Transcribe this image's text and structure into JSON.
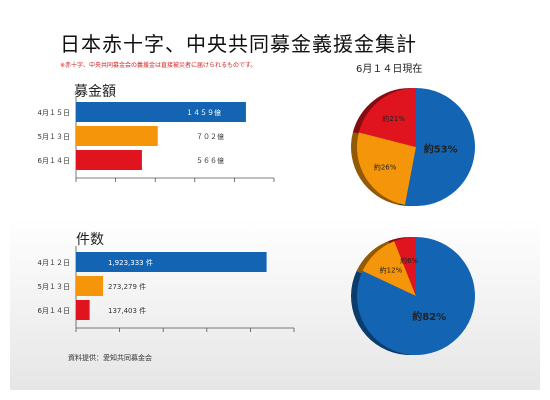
{
  "title": "日本赤十字、中央共同募金義援金集計",
  "note": "※赤十字、中央共同募金会の義援金は直接被災者に届けられるものです。",
  "as_of": "6月１４日現在",
  "source": "資料提供：愛知共同募金会",
  "colors": {
    "blue": "#1464b4",
    "orange": "#f5960a",
    "red": "#e0141e"
  },
  "chart_data": [
    {
      "type": "bar",
      "orientation": "horizontal",
      "title": "募金額",
      "categories": [
        "4月１５日",
        "5月１３日",
        "6月１４日"
      ],
      "values": [
        1459,
        702,
        566
      ],
      "data_labels": [
        "１４５９億",
        "７０２億",
        "５６６億"
      ],
      "colors": [
        "#1464b4",
        "#f5960a",
        "#e0141e"
      ],
      "xlim": [
        0,
        1700
      ],
      "grid": false
    },
    {
      "type": "pie",
      "slices": [
        {
          "value": 53,
          "label": "約53%",
          "color": "#1464b4"
        },
        {
          "value": 26,
          "label": "約26%",
          "color": "#f5960a"
        },
        {
          "value": 21,
          "label": "約21%",
          "color": "#e0141e"
        }
      ]
    },
    {
      "type": "bar",
      "orientation": "horizontal",
      "title": "件数",
      "categories": [
        "4月１２日",
        "5月１３日",
        "6月１４日"
      ],
      "values": [
        1923333,
        273279,
        137403
      ],
      "data_labels": [
        "1,923,333 件",
        "273,279 件",
        "137,403 件"
      ],
      "colors": [
        "#1464b4",
        "#f5960a",
        "#e0141e"
      ],
      "xlim": [
        0,
        2200000
      ],
      "grid": false
    },
    {
      "type": "pie",
      "slices": [
        {
          "value": 82,
          "label": "約82%",
          "color": "#1464b4"
        },
        {
          "value": 12,
          "label": "約12%",
          "color": "#f5960a"
        },
        {
          "value": 6,
          "label": "約6%",
          "color": "#e0141e"
        }
      ]
    }
  ]
}
